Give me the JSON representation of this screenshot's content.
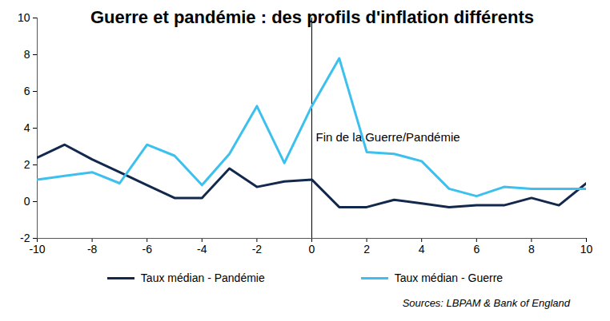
{
  "chart_data": {
    "type": "line",
    "title": "Guerre et pandémie : des profils d'inflation différents",
    "x": [
      -10,
      -9,
      -8,
      -7,
      -6,
      -5,
      -4,
      -3,
      -2,
      -1,
      0,
      1,
      2,
      3,
      4,
      5,
      6,
      7,
      8,
      9,
      10
    ],
    "series": [
      {
        "name": "Taux médian - Pandémie",
        "color": "#12284c",
        "values": [
          2.4,
          3.1,
          2.3,
          1.6,
          0.9,
          0.2,
          0.2,
          1.8,
          0.8,
          1.1,
          1.2,
          -0.3,
          -0.3,
          0.1,
          -0.1,
          -0.3,
          -0.2,
          -0.2,
          0.2,
          -0.2,
          1.0
        ]
      },
      {
        "name": "Taux médian - Guerre",
        "color": "#3cc0ee",
        "values": [
          1.2,
          1.4,
          1.6,
          1.0,
          3.1,
          2.5,
          0.9,
          2.6,
          5.2,
          2.1,
          5.2,
          7.8,
          2.7,
          2.6,
          2.2,
          0.7,
          0.3,
          0.8,
          0.7,
          0.7,
          0.7
        ]
      }
    ],
    "annotations": [
      {
        "text": "Fin de la Guerre/Pandémie",
        "x": 0,
        "y": 3.5
      }
    ],
    "source": "Sources: LBPAM & Bank of England",
    "xlim": [
      -10,
      10
    ],
    "xticks": [
      -10,
      -8,
      -6,
      -4,
      -2,
      0,
      2,
      4,
      6,
      8,
      10
    ],
    "ylim": [
      -2,
      10
    ],
    "yticks": [
      -2,
      0,
      2,
      4,
      6,
      8,
      10
    ],
    "grid": false,
    "legend": "bottom"
  }
}
